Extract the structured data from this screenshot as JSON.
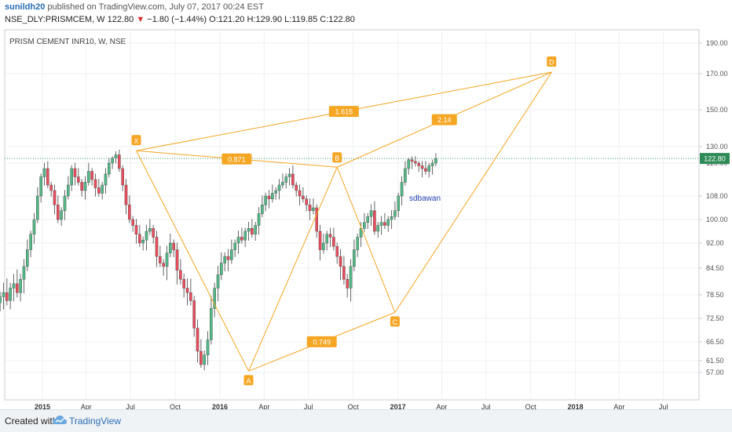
{
  "header": {
    "author": "sunildh20",
    "published_text": "published on TradingView.com, July 07, 2017 00:24 EST",
    "symbol_line": "NSE_DLY:PRISMCEM, W  122.80",
    "change_arrow": "▼",
    "change_text": "−1.80 (−1.44%)",
    "ohlc_text": "O:121.20 H:129.90 L:119.85 C:122.80"
  },
  "chart_title": "PRISM CEMENT INR10, W, NSE",
  "annotation": "sdbawan",
  "last_price_label": "122.80",
  "footer": {
    "created_with": "Created with",
    "brand": "TradingView"
  },
  "colors": {
    "up": "#53b987",
    "down": "#eb4d5c",
    "pattern": "#f5a623",
    "price_line": "#3a9a6a",
    "axis_text": "#555555",
    "label_text": "#ffffff"
  },
  "chart_data": {
    "type": "candlestick",
    "title": "PRISM CEMENT INR10, W, NSE",
    "y_ticks": [
      "57.00",
      "61.50",
      "66.50",
      "72.50",
      "78.50",
      "84.50",
      "92.00",
      "100.00",
      "108.00",
      "120.00",
      "130.00",
      "150.00",
      "170.00",
      "190.00"
    ],
    "x_ticks": [
      "2015",
      "Apr",
      "Jul",
      "Oct",
      "2016",
      "Apr",
      "Jul",
      "Oct",
      "2017",
      "Apr",
      "Jul",
      "Oct",
      "2018",
      "Apr",
      "Jul"
    ],
    "last_price": 122.8,
    "pattern": {
      "points": [
        {
          "label": "X",
          "date": "2015-07-13",
          "price": 127.5
        },
        {
          "label": "A",
          "date": "2016-02-29",
          "price": 57.5
        },
        {
          "label": "B",
          "date": "2016-08-29",
          "price": 118.5
        },
        {
          "label": "C",
          "date": "2016-12-26",
          "price": 74.0
        },
        {
          "label": "D",
          "date": "2017-11-13",
          "price": 171.0
        }
      ],
      "ratios": [
        {
          "text": "0.871",
          "from": "A",
          "to": "B"
        },
        {
          "text": "0.749",
          "from": "B",
          "to": "C"
        },
        {
          "text": "2.14",
          "from": "C",
          "to": "D"
        },
        {
          "text": "1.615",
          "from": "X",
          "to": "D"
        }
      ]
    },
    "closes": [
      78,
      79,
      77,
      80,
      81,
      79,
      82,
      85,
      90,
      95,
      100,
      108,
      115,
      118,
      112,
      110,
      105,
      100,
      103,
      108,
      112,
      118,
      115,
      113,
      110,
      113,
      117,
      114,
      111,
      109,
      112,
      116,
      120,
      123,
      125,
      118,
      112,
      105,
      100,
      98,
      95,
      92,
      93,
      96,
      97,
      94,
      88,
      86,
      85,
      89,
      92,
      90,
      84,
      82,
      80,
      79,
      77,
      70,
      64,
      60,
      63,
      67,
      75,
      80,
      83,
      86,
      88,
      87,
      90,
      92,
      94,
      93,
      96,
      97,
      95,
      98,
      102,
      105,
      108,
      107,
      109,
      110,
      112,
      113,
      115,
      116,
      112,
      110,
      108,
      107,
      105,
      103,
      104,
      96,
      90,
      92,
      95,
      94,
      91,
      88,
      85,
      82,
      80,
      85,
      90,
      94,
      97,
      99,
      101,
      103,
      96,
      98,
      99,
      98,
      100,
      101,
      103,
      108,
      113,
      118,
      122,
      121,
      120,
      119,
      118,
      117,
      119,
      120,
      122.8
    ]
  }
}
